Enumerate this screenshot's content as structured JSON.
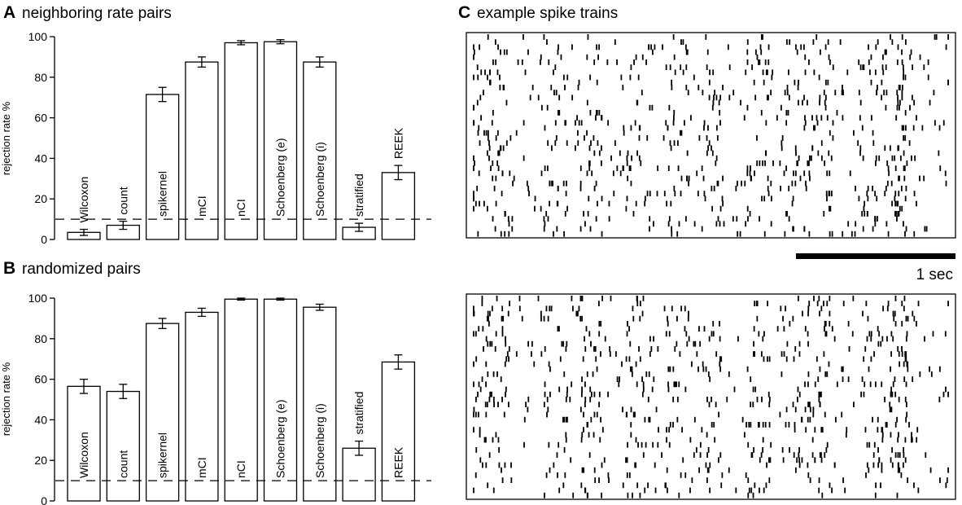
{
  "chart_data": [
    {
      "type": "bar",
      "panel": "A",
      "title": "neighboring rate pairs",
      "ylabel": "rejection rate %",
      "ylim": [
        0,
        100
      ],
      "yticks": [
        0,
        20,
        40,
        60,
        80,
        100
      ],
      "reference_line": 10,
      "categories": [
        "Wilcoxon",
        "count",
        "spikernel",
        "mCI",
        "nCI",
        "Schoenberg (e)",
        "Schoenberg (i)",
        "stratified",
        "REEK"
      ],
      "values": [
        3.5,
        7,
        71.5,
        87.5,
        97,
        97.5,
        87.5,
        6,
        33
      ],
      "errors": [
        1.5,
        2,
        3.5,
        2.5,
        1,
        1,
        2.5,
        2,
        3.5
      ]
    },
    {
      "type": "bar",
      "panel": "B",
      "title": "randomized pairs",
      "ylabel": "rejection rate %",
      "ylim": [
        0,
        100
      ],
      "yticks": [
        0,
        20,
        40,
        60,
        80,
        100
      ],
      "reference_line": 10,
      "categories": [
        "Wilcoxon",
        "count",
        "spikernel",
        "mCI",
        "nCI",
        "Schoenberg (e)",
        "Schoenberg (i)",
        "stratified",
        "REEK"
      ],
      "values": [
        56.5,
        54,
        87.5,
        93,
        99.5,
        99.5,
        95.5,
        26,
        68.5
      ],
      "errors": [
        3.5,
        3.5,
        2.5,
        2,
        0.5,
        0.5,
        1.5,
        3.5,
        3.5
      ]
    },
    {
      "type": "raster",
      "panel": "C",
      "title": "example spike trains",
      "scale_bar_label": "1 sec",
      "trials": 40
    }
  ]
}
